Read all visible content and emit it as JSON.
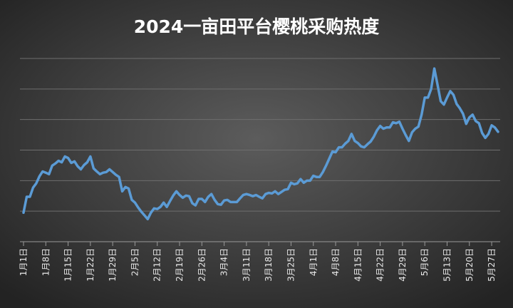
{
  "chart_data": {
    "type": "line",
    "title": "2024一亩田平台樱桃采购热度",
    "categories": [
      "1月1日",
      null,
      null,
      null,
      null,
      null,
      null,
      "1月8日",
      null,
      null,
      null,
      null,
      null,
      null,
      "1月15日",
      null,
      null,
      null,
      null,
      null,
      null,
      "1月22日",
      null,
      null,
      null,
      null,
      null,
      null,
      "1月29日",
      null,
      null,
      null,
      null,
      null,
      null,
      "2月5日",
      null,
      null,
      null,
      null,
      null,
      null,
      "2月12日",
      null,
      null,
      null,
      null,
      null,
      null,
      "2月19日",
      null,
      null,
      null,
      null,
      null,
      null,
      "2月26日",
      null,
      null,
      null,
      null,
      null,
      null,
      "3月4日",
      null,
      null,
      null,
      null,
      null,
      null,
      "3月11日",
      null,
      null,
      null,
      null,
      null,
      null,
      "3月18日",
      null,
      null,
      null,
      null,
      null,
      null,
      "3月25日",
      null,
      null,
      null,
      null,
      null,
      null,
      "4月1日",
      null,
      null,
      null,
      null,
      null,
      null,
      "4月8日",
      null,
      null,
      null,
      null,
      null,
      null,
      "4月15日",
      null,
      null,
      null,
      null,
      null,
      null,
      "4月22日",
      null,
      null,
      null,
      null,
      null,
      null,
      "4月29日",
      null,
      null,
      null,
      null,
      null,
      null,
      "5月6日",
      null,
      null,
      null,
      null,
      null,
      null,
      "5月13日",
      null,
      null,
      null,
      null,
      null,
      null,
      "5月20日",
      null,
      null,
      null,
      null,
      null,
      null,
      "5月27日",
      null,
      null
    ],
    "values": [
      9.5,
      14.7,
      14.7,
      17.7,
      19.1,
      21.4,
      23.0,
      22.6,
      22.1,
      24.9,
      25.6,
      26.5,
      26.0,
      27.9,
      27.4,
      25.8,
      26.3,
      24.7,
      23.7,
      25.1,
      26.0,
      27.9,
      24.0,
      23.0,
      22.1,
      22.6,
      22.8,
      23.7,
      22.8,
      21.9,
      21.2,
      16.5,
      17.9,
      17.4,
      13.7,
      12.8,
      11.2,
      9.8,
      8.6,
      7.4,
      9.5,
      10.9,
      10.7,
      11.4,
      12.8,
      11.4,
      13.3,
      15.1,
      16.5,
      15.3,
      14.4,
      15.1,
      14.9,
      12.6,
      11.9,
      14.0,
      14.0,
      13.0,
      14.7,
      15.6,
      13.7,
      12.3,
      12.1,
      13.5,
      13.7,
      13.0,
      13.0,
      13.0,
      14.2,
      15.3,
      15.6,
      15.3,
      14.9,
      15.3,
      14.7,
      14.2,
      15.6,
      16.0,
      15.8,
      16.5,
      15.6,
      16.3,
      17.0,
      17.2,
      19.3,
      18.8,
      19.1,
      20.5,
      19.3,
      20.0,
      20.0,
      21.6,
      21.2,
      21.2,
      22.8,
      24.9,
      27.2,
      29.5,
      29.3,
      30.9,
      30.9,
      32.1,
      33.0,
      35.3,
      33.0,
      32.3,
      31.2,
      30.9,
      31.9,
      32.8,
      34.4,
      36.5,
      37.9,
      37.0,
      37.4,
      37.4,
      39.1,
      38.8,
      39.3,
      37.0,
      34.9,
      33.0,
      35.8,
      37.0,
      37.7,
      41.6,
      47.2,
      47.2,
      50.0,
      56.7,
      51.4,
      46.0,
      44.9,
      47.2,
      49.3,
      48.1,
      45.1,
      43.7,
      41.9,
      38.6,
      40.7,
      41.6,
      39.5,
      38.8,
      35.6,
      34.0,
      35.3,
      38.1,
      37.4,
      36.0
    ],
    "color": "#5b9bd5",
    "ylim": [
      0,
      60
    ],
    "yticks": [
      0,
      10,
      20,
      30,
      40,
      50,
      60
    ],
    "ytick_labels": false,
    "grid": true
  }
}
